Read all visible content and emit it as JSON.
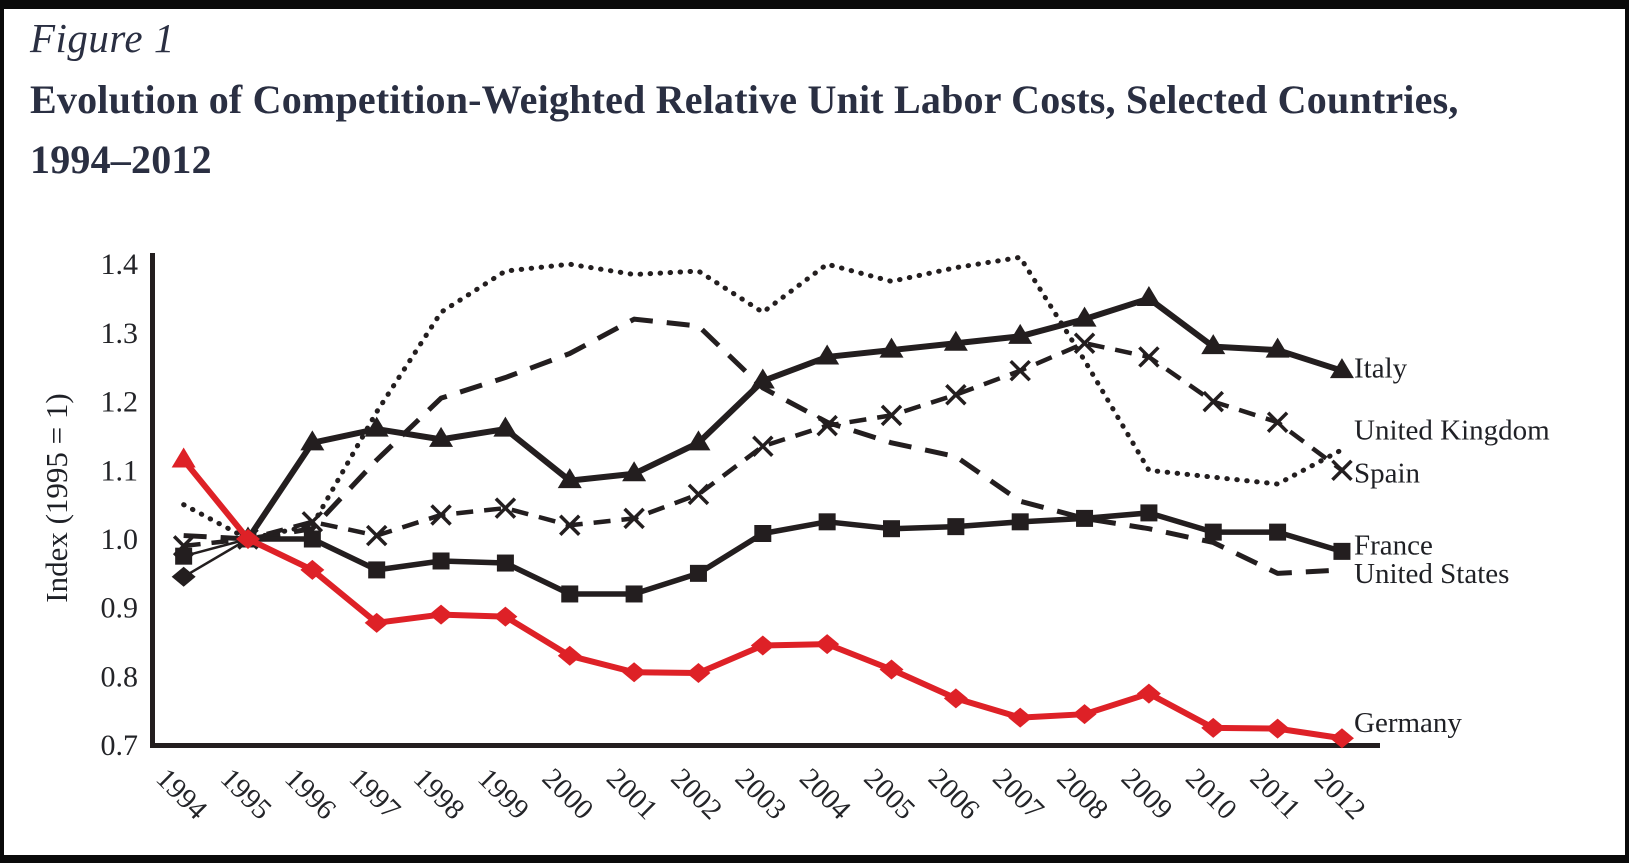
{
  "figure": {
    "label": "Figure 1",
    "title_line1": "Evolution of Competition-Weighted Relative Unit Labor Costs, Selected Countries,",
    "title_line2": "1994–2012"
  },
  "chart_data": {
    "type": "line",
    "title": "Evolution of Competition-Weighted Relative Unit Labor Costs, Selected Countries, 1994–2012",
    "xlabel": "",
    "ylabel": "Index (1995 = 1)",
    "x": [
      1994,
      1995,
      1996,
      1997,
      1998,
      1999,
      2000,
      2001,
      2002,
      2003,
      2004,
      2005,
      2006,
      2007,
      2008,
      2009,
      2010,
      2011,
      2012
    ],
    "ylim": [
      0.7,
      1.4
    ],
    "yticks": [
      "1.4",
      "1.3",
      "1.2",
      "1.1",
      "1.0",
      "0.9",
      "0.8",
      "0.7"
    ],
    "grid": false,
    "legend_position": "right-edge-labels",
    "colors": {
      "black": "#231e1f",
      "red": "#de2127"
    },
    "series": [
      {
        "name": "Italy",
        "color": "#231e1f",
        "style": "solid",
        "lw": 6,
        "marker": "triangle",
        "first_marker": "diamond",
        "first_segment_width": 2.5,
        "label_dy": -3,
        "values": [
          0.945,
          1.0,
          1.14,
          1.16,
          1.145,
          1.16,
          1.085,
          1.095,
          1.14,
          1.23,
          1.265,
          1.275,
          1.285,
          1.295,
          1.32,
          1.35,
          1.28,
          1.275,
          1.245
        ]
      },
      {
        "name": "United Kingdom",
        "color": "#231e1f",
        "style": "dotted",
        "lw": 5,
        "marker": "none",
        "label_dy": -20,
        "values": [
          1.05,
          1.0,
          1.02,
          1.185,
          1.33,
          1.39,
          1.4,
          1.385,
          1.39,
          1.33,
          1.4,
          1.375,
          1.395,
          1.41,
          1.26,
          1.1,
          1.09,
          1.08,
          1.13
        ]
      },
      {
        "name": "Spain",
        "color": "#231e1f",
        "style": "dashed",
        "lw": 4.5,
        "marker": "x",
        "label_dy": 2,
        "values": [
          0.99,
          1.0,
          1.025,
          1.005,
          1.035,
          1.045,
          1.02,
          1.03,
          1.065,
          1.135,
          1.165,
          1.18,
          1.21,
          1.245,
          1.285,
          1.265,
          1.2,
          1.17,
          1.1
        ]
      },
      {
        "name": "France",
        "color": "#231e1f",
        "style": "solid",
        "lw": 5.5,
        "marker": "square",
        "first_segment_width": 2.5,
        "label_dy": -7,
        "values": [
          0.975,
          1.0,
          1.0,
          0.955,
          0.968,
          0.965,
          0.92,
          0.92,
          0.95,
          1.008,
          1.025,
          1.015,
          1.018,
          1.025,
          1.03,
          1.038,
          1.01,
          1.01,
          0.982
        ]
      },
      {
        "name": "United States",
        "color": "#231e1f",
        "style": "dashed-long",
        "lw": 5,
        "marker": "none",
        "label_dy": 3,
        "values": [
          1.005,
          1.0,
          1.015,
          1.115,
          1.205,
          1.235,
          1.27,
          1.32,
          1.31,
          1.22,
          1.17,
          1.14,
          1.12,
          1.055,
          1.03,
          1.015,
          0.995,
          0.95,
          0.955
        ]
      },
      {
        "name": "Germany",
        "color": "#de2127",
        "style": "solid",
        "lw": 6,
        "marker": "diamond",
        "first_marker": "triangle",
        "label_dy": -16,
        "values": [
          1.115,
          1.0,
          0.955,
          0.878,
          0.89,
          0.887,
          0.83,
          0.806,
          0.805,
          0.845,
          0.847,
          0.81,
          0.768,
          0.74,
          0.745,
          0.775,
          0.725,
          0.724,
          0.71
        ]
      }
    ]
  }
}
